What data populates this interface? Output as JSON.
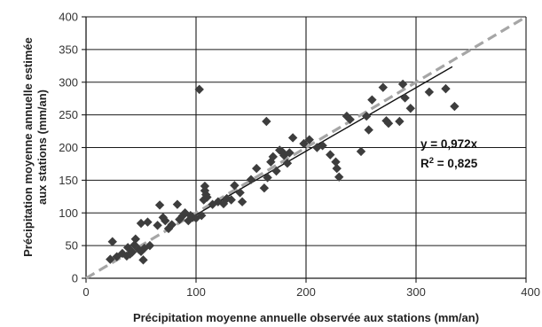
{
  "chart_data": {
    "type": "scatter",
    "xlabel": "Précipitation moyenne annuelle observée aux stations (mm/an)",
    "ylabel_lines": [
      "Précipitation moyenne annuelle estimée",
      "aux stations (mm/an)"
    ],
    "xlim": [
      0,
      400
    ],
    "ylim": [
      0,
      400
    ],
    "xticks": [
      0,
      100,
      200,
      300,
      400
    ],
    "yticks": [
      0,
      50,
      100,
      150,
      200,
      250,
      300,
      350,
      400
    ],
    "xtick_labels": [
      "0",
      "100",
      "200",
      "300",
      "400"
    ],
    "ytick_labels": [
      "0",
      "50",
      "100",
      "150",
      "200",
      "250",
      "300",
      "350",
      "400"
    ],
    "grid": true,
    "marker": "diamond",
    "marker_color": "#3d3d3d",
    "points": [
      [
        22,
        29
      ],
      [
        24,
        56
      ],
      [
        28,
        33
      ],
      [
        33,
        38
      ],
      [
        37,
        34
      ],
      [
        38,
        47
      ],
      [
        40,
        37
      ],
      [
        42,
        40
      ],
      [
        44,
        51
      ],
      [
        45,
        60
      ],
      [
        48,
        44
      ],
      [
        50,
        84
      ],
      [
        50,
        41
      ],
      [
        52,
        28
      ],
      [
        53,
        46
      ],
      [
        56,
        86
      ],
      [
        58,
        50
      ],
      [
        65,
        81
      ],
      [
        67,
        112
      ],
      [
        70,
        93
      ],
      [
        72,
        88
      ],
      [
        75,
        76
      ],
      [
        78,
        82
      ],
      [
        83,
        113
      ],
      [
        85,
        90
      ],
      [
        88,
        96
      ],
      [
        90,
        100
      ],
      [
        93,
        88
      ],
      [
        95,
        96
      ],
      [
        97,
        93
      ],
      [
        100,
        92
      ],
      [
        103,
        289
      ],
      [
        105,
        96
      ],
      [
        107,
        120
      ],
      [
        108,
        141
      ],
      [
        108,
        134
      ],
      [
        109,
        128
      ],
      [
        110,
        124
      ],
      [
        115,
        113
      ],
      [
        120,
        117
      ],
      [
        125,
        114
      ],
      [
        128,
        122
      ],
      [
        132,
        120
      ],
      [
        135,
        142
      ],
      [
        140,
        131
      ],
      [
        142,
        117
      ],
      [
        150,
        151
      ],
      [
        155,
        168
      ],
      [
        162,
        138
      ],
      [
        164,
        240
      ],
      [
        165,
        154
      ],
      [
        168,
        178
      ],
      [
        170,
        186
      ],
      [
        173,
        164
      ],
      [
        176,
        196
      ],
      [
        178,
        194
      ],
      [
        180,
        188
      ],
      [
        183,
        176
      ],
      [
        185,
        192
      ],
      [
        188,
        215
      ],
      [
        198,
        206
      ],
      [
        203,
        212
      ],
      [
        210,
        200
      ],
      [
        215,
        203
      ],
      [
        222,
        189
      ],
      [
        227,
        178
      ],
      [
        228,
        168
      ],
      [
        230,
        155
      ],
      [
        237,
        248
      ],
      [
        240,
        243
      ],
      [
        250,
        194
      ],
      [
        255,
        248
      ],
      [
        257,
        227
      ],
      [
        260,
        273
      ],
      [
        270,
        292
      ],
      [
        273,
        241
      ],
      [
        275,
        237
      ],
      [
        285,
        240
      ],
      [
        288,
        297
      ],
      [
        290,
        276
      ],
      [
        295,
        260
      ],
      [
        312,
        285
      ],
      [
        327,
        290
      ],
      [
        335,
        263
      ]
    ],
    "trendline": {
      "slope": 0.972,
      "x_range": [
        100,
        333
      ],
      "color": "#111111",
      "style": "solid"
    },
    "identity_line": {
      "x_range": [
        0,
        400
      ],
      "color": "#a6a6a6",
      "style": "dashed"
    },
    "equation_text": "y = 0,972x",
    "r2_prefix": "R",
    "r2_superscript": "2",
    "r2_suffix": " = 0,825"
  }
}
